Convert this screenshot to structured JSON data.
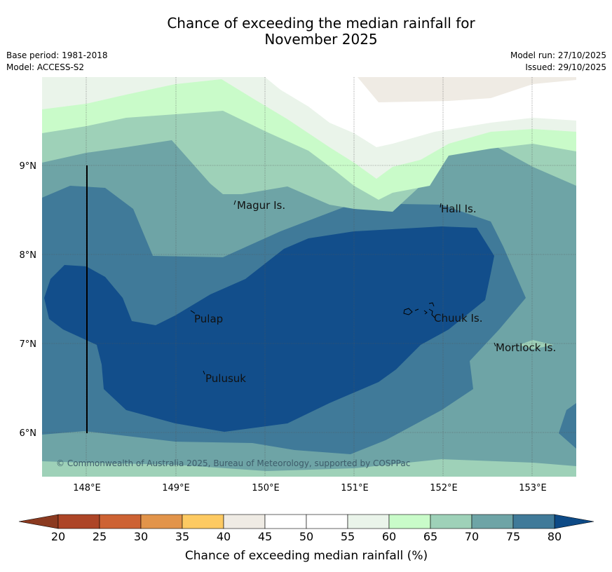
{
  "title_line1": "Chance of exceeding the median rainfall for",
  "title_line2": "November 2025",
  "meta": {
    "base_period": "Base period: 1981-2018",
    "model": "Model: ACCESS-S2",
    "model_run": "Model run: 27/10/2025",
    "issued": "Issued: 29/10/2025"
  },
  "map": {
    "islands": [
      {
        "name": "Magur Is."
      },
      {
        "name": "Hall Is."
      },
      {
        "name": "Pulap"
      },
      {
        "name": "Chuuk Is."
      },
      {
        "name": "Mortlock Is."
      },
      {
        "name": "Pulusuk"
      }
    ],
    "lat_labels": [
      "9°N",
      "8°N",
      "7°N",
      "6°N"
    ],
    "lon_labels": [
      "148°E",
      "149°E",
      "150°E",
      "151°E",
      "152°E",
      "153°E"
    ],
    "copyright": "© Commonwealth of Australia 2025, Bureau of Meteorology, supported by COSPPac"
  },
  "colorbar": {
    "title": "Chance of exceeding median rainfall (%)",
    "ticks": [
      "20",
      "25",
      "30",
      "35",
      "40",
      "45",
      "50",
      "55",
      "60",
      "65",
      "70",
      "75",
      "80"
    ],
    "colors": [
      "#ad4527",
      "#cd6233",
      "#e2944a",
      "#fdca62",
      "#efebe4",
      "#ffffff",
      "#ffffff",
      "#eaf4ea",
      "#c9fbc9",
      "#9ed1b8",
      "#6ea4a6",
      "#407a99",
      "#124e8b"
    ],
    "under_color": "#8b3a20",
    "over_color": "#0d4a86"
  }
}
